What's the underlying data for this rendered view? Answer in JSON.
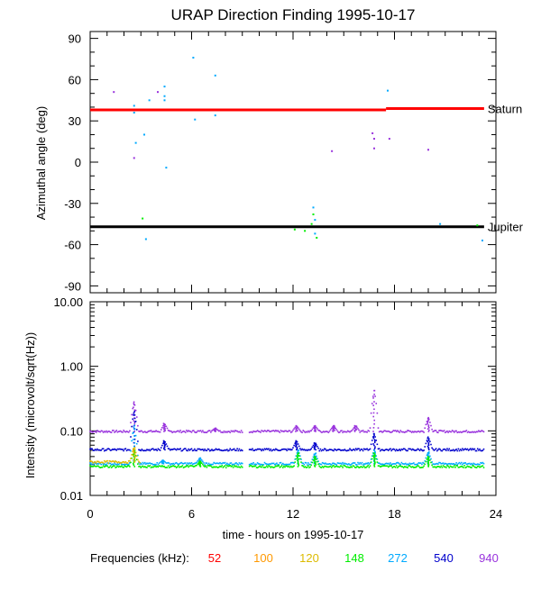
{
  "page": {
    "title": "URAP Direction Finding  1995-10-17",
    "frequency_label": "Frequencies (kHz):"
  },
  "colors": {
    "f52": "#ff0000",
    "f100": "#ff9900",
    "f120": "#ddbb00",
    "f148": "#00ee00",
    "f272": "#00aaff",
    "f540": "#0000cc",
    "f940": "#9933dd"
  },
  "frequencies": [
    {
      "label": "52",
      "color": "#ff0000"
    },
    {
      "label": "100",
      "color": "#ff9900"
    },
    {
      "label": "120",
      "color": "#ddbb00"
    },
    {
      "label": "148",
      "color": "#00ee00"
    },
    {
      "label": "272",
      "color": "#00aaff"
    },
    {
      "label": "540",
      "color": "#0000cc"
    },
    {
      "label": "940",
      "color": "#9933dd"
    }
  ],
  "chart_data": [
    {
      "type": "scatter",
      "ylabel": "Azimuthal angle (deg)",
      "xlim": [
        0,
        24
      ],
      "ylim": [
        -95,
        95
      ],
      "yticks": [
        90,
        60,
        30,
        0,
        -30,
        -60,
        -90
      ],
      "reference_lines": [
        {
          "name": "Saturn",
          "color": "#ff0000",
          "segments": [
            [
              0,
              17.5,
              38
            ],
            [
              17.5,
              23.3,
              39
            ]
          ]
        },
        {
          "name": "Jupiter",
          "color": "#000000",
          "segments": [
            [
              0,
              23.3,
              -47
            ]
          ]
        }
      ],
      "points": [
        {
          "x": 1.4,
          "y": 51,
          "c": "f940"
        },
        {
          "x": 2.6,
          "y": 41,
          "c": "f272"
        },
        {
          "x": 2.6,
          "y": 36,
          "c": "f272"
        },
        {
          "x": 2.7,
          "y": 14,
          "c": "f272"
        },
        {
          "x": 2.6,
          "y": 3,
          "c": "f940"
        },
        {
          "x": 3.2,
          "y": 20,
          "c": "f272"
        },
        {
          "x": 3.1,
          "y": -41,
          "c": "f148"
        },
        {
          "x": 3.3,
          "y": -56,
          "c": "f272"
        },
        {
          "x": 3.5,
          "y": 45,
          "c": "f272"
        },
        {
          "x": 4.0,
          "y": 51,
          "c": "f940"
        },
        {
          "x": 4.4,
          "y": 55,
          "c": "f272"
        },
        {
          "x": 4.4,
          "y": 48,
          "c": "f272"
        },
        {
          "x": 4.4,
          "y": 45,
          "c": "f272"
        },
        {
          "x": 4.5,
          "y": -4,
          "c": "f272"
        },
        {
          "x": 6.1,
          "y": 76,
          "c": "f272"
        },
        {
          "x": 6.2,
          "y": 31,
          "c": "f272"
        },
        {
          "x": 7.4,
          "y": 63,
          "c": "f272"
        },
        {
          "x": 7.4,
          "y": 34,
          "c": "f272"
        },
        {
          "x": 12.1,
          "y": -49,
          "c": "f148"
        },
        {
          "x": 12.7,
          "y": -50,
          "c": "f148"
        },
        {
          "x": 13.2,
          "y": -33,
          "c": "f272"
        },
        {
          "x": 13.2,
          "y": -38,
          "c": "f148"
        },
        {
          "x": 13.3,
          "y": -42,
          "c": "f272"
        },
        {
          "x": 13.1,
          "y": -45,
          "c": "f148"
        },
        {
          "x": 13.3,
          "y": -52,
          "c": "f272"
        },
        {
          "x": 13.4,
          "y": -55,
          "c": "f148"
        },
        {
          "x": 14.3,
          "y": 8,
          "c": "f940"
        },
        {
          "x": 16.7,
          "y": 21,
          "c": "f940"
        },
        {
          "x": 16.8,
          "y": 17,
          "c": "f940"
        },
        {
          "x": 16.8,
          "y": 10,
          "c": "f940"
        },
        {
          "x": 17.6,
          "y": 52,
          "c": "f272"
        },
        {
          "x": 17.7,
          "y": 17,
          "c": "f940"
        },
        {
          "x": 20.0,
          "y": 9,
          "c": "f940"
        },
        {
          "x": 20.7,
          "y": -45,
          "c": "f272"
        },
        {
          "x": 22.9,
          "y": -46,
          "c": "f148"
        },
        {
          "x": 23.2,
          "y": -57,
          "c": "f272"
        }
      ]
    },
    {
      "type": "scatter",
      "ylabel": "Intensity (microvolt/sqrt(Hz))",
      "xlabel": "time - hours on 1995-10-17",
      "xlim": [
        0,
        24
      ],
      "xticks": [
        0,
        6,
        12,
        18,
        24
      ],
      "ylim": [
        0.01,
        10
      ],
      "yscale": "log",
      "yticks": [
        "0.01",
        "0.10",
        "1.00",
        "10.00"
      ],
      "gap": [
        9.0,
        9.4
      ],
      "series": [
        {
          "name": "940",
          "c": "f940",
          "baseline": 0.098,
          "spikes": [
            [
              2.6,
              0.28
            ],
            [
              4.4,
              0.13
            ],
            [
              7.4,
              0.11
            ],
            [
              12.2,
              0.12
            ],
            [
              13.3,
              0.12
            ],
            [
              14.4,
              0.12
            ],
            [
              15.7,
              0.12
            ],
            [
              16.8,
              0.42
            ],
            [
              20.0,
              0.16
            ]
          ]
        },
        {
          "name": "540",
          "c": "f540",
          "baseline": 0.051,
          "spikes": [
            [
              2.6,
              0.2
            ],
            [
              4.4,
              0.07
            ],
            [
              12.2,
              0.07
            ],
            [
              13.3,
              0.065
            ],
            [
              16.8,
              0.09
            ],
            [
              20.0,
              0.08
            ]
          ]
        },
        {
          "name": "272",
          "c": "f272",
          "baseline": 0.031,
          "spikes": [
            [
              2.6,
              0.12
            ],
            [
              4.3,
              0.035
            ],
            [
              6.5,
              0.038
            ],
            [
              12.3,
              0.05
            ],
            [
              13.3,
              0.045
            ],
            [
              16.8,
              0.05
            ],
            [
              20.0,
              0.047
            ]
          ]
        },
        {
          "name": "148",
          "c": "f148",
          "baseline": 0.028,
          "spikes": [
            [
              2.6,
              0.05
            ],
            [
              6.5,
              0.034
            ],
            [
              12.3,
              0.045
            ],
            [
              13.3,
              0.04
            ],
            [
              16.8,
              0.045
            ],
            [
              20.0,
              0.04
            ]
          ]
        },
        {
          "name": "120",
          "c": "f120",
          "baseline": 0.033,
          "spikes": [
            [
              2.6,
              0.055
            ]
          ]
        }
      ]
    }
  ]
}
